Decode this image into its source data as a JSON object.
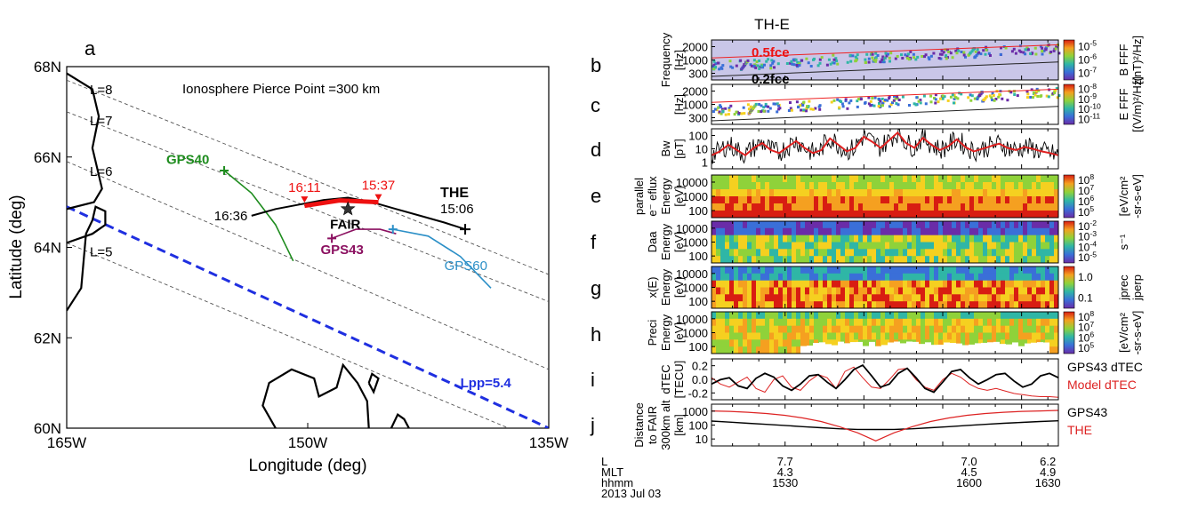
{
  "chart_data": [
    {
      "type": "scatter",
      "panel_letter": "a",
      "title": "Ionosphere Pierce Point =300 km",
      "xlabel": "Longitude (deg)",
      "ylabel": "Latitude (deg)",
      "xlim": [
        -165,
        -135
      ],
      "ylim": [
        60,
        68
      ],
      "xticks": [
        {
          "v": -165,
          "label": "165W"
        },
        {
          "v": -150,
          "label": "150W"
        },
        {
          "v": -135,
          "label": "135W"
        }
      ],
      "yticks": [
        {
          "v": 60,
          "label": "60N"
        },
        {
          "v": 62,
          "label": "62N"
        },
        {
          "v": 64,
          "label": "64N"
        },
        {
          "v": 66,
          "label": "66N"
        },
        {
          "v": 68,
          "label": "68N"
        }
      ],
      "lshells": [
        {
          "label": "L=8",
          "p1": [
            -165,
            67.7
          ],
          "p2": [
            -135,
            63.4
          ]
        },
        {
          "label": "L=7",
          "p1": [
            -165,
            67.0
          ],
          "p2": [
            -135,
            62.8
          ]
        },
        {
          "label": "L=6",
          "p1": [
            -165,
            65.9
          ],
          "p2": [
            -135,
            61.3
          ]
        },
        {
          "label": "L=5",
          "p1": [
            -165,
            64.1
          ],
          "p2": [
            -137.5,
            60.0
          ]
        }
      ],
      "lpp": {
        "label": "Lpp=5.4",
        "p1": [
          -165,
          64.9
        ],
        "p2": [
          -135,
          60.0
        ],
        "color": "#1f2fe0"
      },
      "coast_upper": [
        [
          -165,
          67.85
        ],
        [
          -163.4,
          67.5
        ],
        [
          -163.0,
          66.9
        ],
        [
          -163.4,
          66.2
        ],
        [
          -162.8,
          65.3
        ],
        [
          -163.3,
          65.0
        ],
        [
          -165,
          64.85
        ]
      ],
      "coast_lower": [
        [
          -165,
          64.1
        ],
        [
          -163.4,
          64.3
        ],
        [
          -162.6,
          64.5
        ],
        [
          -162.6,
          64.8
        ],
        [
          -163.2,
          64.9
        ],
        [
          -163.4,
          64.6
        ],
        [
          -163.8,
          64.3
        ],
        [
          -164.1,
          63.1
        ],
        [
          -165,
          62.6
        ]
      ],
      "land_blob1": [
        [
          -152.0,
          60.0
        ],
        [
          -152.8,
          60.5
        ],
        [
          -152.4,
          61.0
        ],
        [
          -151.0,
          61.3
        ],
        [
          -149.6,
          61.1
        ],
        [
          -149.3,
          60.7
        ],
        [
          -148.2,
          60.9
        ],
        [
          -147.8,
          61.4
        ],
        [
          -146.9,
          61.0
        ],
        [
          -146.3,
          60.6
        ],
        [
          -146.2,
          60.0
        ]
      ],
      "land_blob2": [
        [
          -146.2,
          61.0
        ],
        [
          -146.0,
          61.2
        ],
        [
          -145.6,
          61.1
        ],
        [
          -145.9,
          60.8
        ],
        [
          -146.2,
          61.0
        ]
      ],
      "land_blob3": [
        [
          -144.8,
          60.0
        ],
        [
          -144.4,
          60.3
        ],
        [
          -144.0,
          60.2
        ],
        [
          -143.7,
          60.0
        ]
      ],
      "the_track": {
        "color": "#000000",
        "points": [
          [
            -153.5,
            64.7
          ],
          [
            -152.0,
            64.85
          ],
          [
            -150.5,
            64.95
          ],
          [
            -149.0,
            65.05
          ],
          [
            -147.5,
            65.1
          ],
          [
            -146.0,
            65.0
          ],
          [
            -144.5,
            64.85
          ],
          [
            -143.0,
            64.7
          ],
          [
            -141.5,
            64.55
          ],
          [
            -140.2,
            64.4
          ]
        ],
        "highlight": [
          [
            -150.2,
            64.92
          ],
          [
            -148.0,
            65.04
          ],
          [
            -145.6,
            65.0
          ]
        ],
        "highlight_color": "#ee1111",
        "start_label": "16:36",
        "end_label": "15:06",
        "name": "THE",
        "mark_times": [
          {
            "label": "16:11",
            "lon": -150.2,
            "lat": 64.95
          },
          {
            "label": "15:37",
            "lon": -145.6,
            "lat": 65.0
          }
        ],
        "mark_color": "#ee1111"
      },
      "gps_tracks": [
        {
          "name": "GPS40",
          "color": "#1e8c1e",
          "points": [
            [
              -155.2,
              65.7
            ],
            [
              -153.5,
              65.2
            ],
            [
              -152.0,
              64.5
            ],
            [
              -150.9,
              63.7
            ]
          ],
          "start": [
            -155.2,
            65.7
          ]
        },
        {
          "name": "GPS43",
          "color": "#8b1060",
          "points": [
            [
              -148.5,
              64.2
            ],
            [
              -147.0,
              64.4
            ],
            [
              -145.5,
              64.4
            ],
            [
              -144.5,
              64.3
            ]
          ],
          "start": [
            -148.5,
            64.2
          ]
        },
        {
          "name": "GPS60",
          "color": "#2b8fc7",
          "points": [
            [
              -144.7,
              64.4
            ],
            [
              -142.5,
              64.25
            ],
            [
              -140.5,
              63.8
            ],
            [
              -138.6,
              63.1
            ]
          ],
          "start": [
            -144.7,
            64.4
          ]
        }
      ],
      "fair": {
        "label": "FAIR",
        "lon": -147.5,
        "lat": 64.85
      }
    },
    {
      "type": "heatmap",
      "title": "TH-E",
      "xlim_minutes": [
        1502,
        1634
      ],
      "xtick_minutes": [
        1530,
        1600,
        1630
      ],
      "footer": {
        "row_labels": [
          "L",
          "MLT",
          "hhmm",
          "2013 Jul 03"
        ],
        "L": [
          "7.7",
          "7.0",
          "6.2"
        ],
        "MLT": [
          "4.3",
          "4.5",
          "4.9"
        ],
        "hhmm": [
          "1530",
          "1600",
          "1630"
        ]
      },
      "panels": [
        {
          "letter": "b",
          "ylabel": [
            "Frequency",
            "[Hz]"
          ],
          "yscale": "log",
          "ylim": [
            300,
            2500
          ],
          "yticks": [
            "2000",
            "1000",
            "300"
          ],
          "overlay": [
            "0.5fce",
            "0.2fce"
          ],
          "cbar_label": [
            "B FFF",
            "[(nT)²/Hz]"
          ],
          "cbar_ticks": [
            "10-5",
            "10-6",
            "10-7"
          ]
        },
        {
          "letter": "c",
          "ylabel": [
            "[Hz]"
          ],
          "yscale": "log",
          "ylim": [
            300,
            2500
          ],
          "yticks": [
            "2000",
            "1000",
            "300"
          ],
          "cbar_label": [
            "E FFF",
            "[(V/m)²/Hz]"
          ],
          "cbar_ticks": [
            "10-8",
            "10-9",
            "10-10",
            "10-11"
          ]
        },
        {
          "letter": "d",
          "type": "line",
          "ylabel": [
            "Bw",
            "[pT]"
          ],
          "yscale": "log",
          "ylim": [
            0.5,
            100
          ],
          "yticks": [
            "100",
            "10",
            "1"
          ]
        },
        {
          "letter": "e",
          "ylabel": [
            "parallel",
            "e⁻ eflux",
            "Energy",
            "[eV]"
          ],
          "yticks": [
            "10000",
            "1000",
            "100"
          ],
          "cbar_label": [
            "[eV/cm²",
            "-sr-s-eV]"
          ],
          "cbar_ticks": [
            "108",
            "107",
            "106",
            "105"
          ]
        },
        {
          "letter": "f",
          "ylabel": [
            "Daa",
            "Energy",
            "[eV]"
          ],
          "yticks": [
            "10000",
            "1000",
            "100"
          ],
          "cbar_label": [
            "s⁻¹"
          ],
          "cbar_ticks": [
            "10-2",
            "10-3",
            "10-4",
            "10-5"
          ]
        },
        {
          "letter": "g",
          "ylabel": [
            "x(E)",
            "Energy",
            "[eV]"
          ],
          "yticks": [
            "10000",
            "1000",
            "100"
          ],
          "cbar_label": [
            "jprec",
            "jperp"
          ],
          "cbar_ticks": [
            "1.0",
            "0.1"
          ]
        },
        {
          "letter": "h",
          "ylabel": [
            "Preci",
            "Energy",
            "[eV]"
          ],
          "yticks": [
            "10000",
            "1000",
            "100"
          ],
          "cbar_label": [
            "[eV/cm²",
            "-sr-s-eV]"
          ],
          "cbar_ticks": [
            "108",
            "107",
            "106",
            "105"
          ]
        },
        {
          "letter": "i",
          "type": "line",
          "ylabel": [
            "dTEC",
            "[TECU]"
          ],
          "ylim": [
            -0.3,
            0.35
          ],
          "yticks": [
            "0.2",
            "0.0",
            "-0.2"
          ],
          "legend": [
            {
              "name": "GPS43 dTEC",
              "color": "#000000"
            },
            {
              "name": "Model dTEC",
              "color": "#dd2222"
            }
          ]
        },
        {
          "letter": "j",
          "type": "line",
          "ylabel": [
            "Distance",
            "to FAIR",
            "300km alt",
            "[km]"
          ],
          "yscale": "log",
          "ylim": [
            5,
            1500
          ],
          "yticks": [
            "1000",
            "100",
            "10"
          ],
          "legend": [
            {
              "name": "GPS43",
              "color": "#000000"
            },
            {
              "name": "THE",
              "color": "#dd2222"
            }
          ]
        }
      ],
      "series": {
        "bw_red": [
          3,
          5,
          12,
          6,
          3,
          8,
          15,
          6,
          4,
          9,
          20,
          8,
          4,
          6,
          28,
          12,
          5,
          8,
          35,
          18,
          8,
          22,
          60,
          15,
          8,
          30,
          12,
          6,
          10,
          25,
          9,
          5,
          7,
          10,
          14,
          8,
          6,
          9,
          7,
          5,
          4,
          3
        ],
        "dtec_gps43": [
          -0.05,
          0.02,
          0.05,
          -0.08,
          -0.12,
          0.04,
          0.12,
          0.06,
          -0.08,
          -0.15,
          -0.05,
          0.08,
          0.1,
          -0.02,
          -0.12,
          0.02,
          0.18,
          0.25,
          0.08,
          -0.1,
          -0.05,
          0.12,
          0.2,
          0.05,
          -0.12,
          -0.18,
          -0.02,
          0.15,
          0.18,
          0.05,
          -0.05,
          0.02,
          0.1,
          0.12,
          0.0,
          -0.1,
          -0.05,
          0.08,
          0.12,
          0.05
        ],
        "dtec_model": [
          0.05,
          -0.05,
          -0.1,
          -0.02,
          0.06,
          -0.12,
          -0.18,
          0.02,
          0.08,
          -0.1,
          -0.15,
          0.0,
          0.1,
          0.05,
          -0.12,
          0.15,
          0.22,
          0.05,
          -0.1,
          -0.12,
          0.02,
          0.18,
          0.2,
          0.02,
          -0.1,
          -0.15,
          0.02,
          0.12,
          0.06,
          -0.05,
          -0.12,
          -0.15,
          -0.12,
          -0.16,
          -0.2,
          -0.22,
          -0.24,
          -0.25,
          -0.25,
          -0.26
        ],
        "dist_gps43": [
          150,
          130,
          110,
          95,
          82,
          70,
          60,
          52,
          48,
          47,
          48,
          52,
          60,
          70,
          82,
          95,
          110,
          125,
          140,
          155
        ],
        "dist_the": [
          600,
          560,
          500,
          420,
          330,
          230,
          140,
          70,
          30,
          10,
          30,
          70,
          140,
          230,
          330,
          420,
          500,
          560,
          600,
          640
        ]
      }
    }
  ]
}
